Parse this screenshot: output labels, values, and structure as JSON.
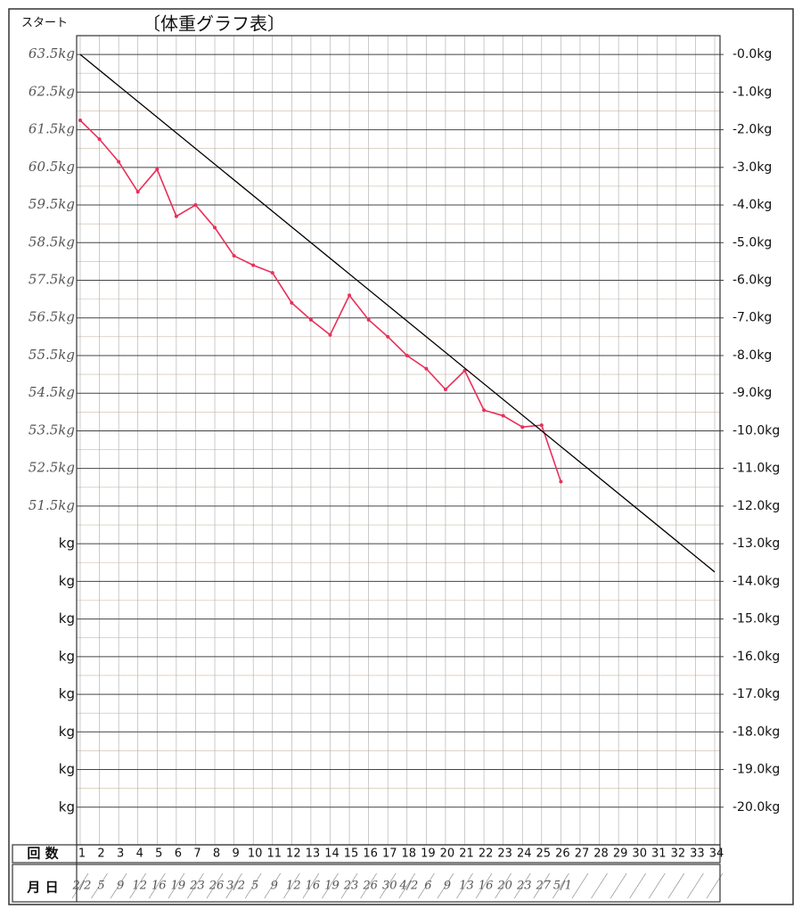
{
  "chart_data": {
    "type": "line",
    "title": "〔体重グラフ表〕",
    "start_label": "スタート",
    "x_label": "回 数",
    "date_label": "月 日",
    "x": [
      1,
      2,
      3,
      4,
      5,
      6,
      7,
      8,
      9,
      10,
      11,
      12,
      13,
      14,
      15,
      16,
      17,
      18,
      19,
      20,
      21,
      22,
      23,
      24,
      25,
      26,
      27,
      28,
      29,
      30,
      31,
      32,
      33,
      34
    ],
    "xlim": [
      1,
      34
    ],
    "xticks": [
      1,
      2,
      3,
      4,
      5,
      6,
      7,
      8,
      9,
      10,
      11,
      12,
      13,
      14,
      15,
      16,
      17,
      18,
      19,
      20,
      21,
      22,
      23,
      24,
      25,
      26,
      27,
      28,
      29,
      30,
      31,
      32,
      33,
      34
    ],
    "dates": [
      "2/2",
      "5",
      "9",
      "12",
      "16",
      "19",
      "23",
      "26",
      "3/2",
      "5",
      "9",
      "12",
      "16",
      "19",
      "23",
      "26",
      "30",
      "4/2",
      "6",
      "9",
      "13",
      "16",
      "20",
      "23",
      "27",
      "5/1",
      null,
      null,
      null,
      null,
      null,
      null,
      null,
      null
    ],
    "ylim": [
      0.5,
      -21
    ],
    "yticks": [
      {
        "value": 0,
        "label": "63.5kg"
      },
      {
        "value": -1,
        "label": "62.5kg"
      },
      {
        "value": -2,
        "label": "61.5kg"
      },
      {
        "value": -3,
        "label": "60.5kg"
      },
      {
        "value": -4,
        "label": "59.5kg"
      },
      {
        "value": -5,
        "label": "58.5kg"
      },
      {
        "value": -6,
        "label": "57.5kg"
      },
      {
        "value": -7,
        "label": "56.5kg"
      },
      {
        "value": -8,
        "label": "55.5kg"
      },
      {
        "value": -9,
        "label": "54.5kg"
      },
      {
        "value": -10,
        "label": "53.5kg"
      },
      {
        "value": -11,
        "label": "52.5kg"
      },
      {
        "value": -12,
        "label": "51.5kg"
      },
      {
        "value": -13,
        "label": "kg"
      },
      {
        "value": -14,
        "label": "kg"
      },
      {
        "value": -15,
        "label": "kg"
      },
      {
        "value": -16,
        "label": "kg"
      },
      {
        "value": -17,
        "label": "kg"
      },
      {
        "value": -18,
        "label": "kg"
      },
      {
        "value": -19,
        "label": "kg"
      },
      {
        "value": -20,
        "label": "kg"
      }
    ],
    "y2lim": [
      0.5,
      -21
    ],
    "y2ticks": [
      {
        "value": 0,
        "label": "-0.0kg"
      },
      {
        "value": -1,
        "label": "-1.0kg"
      },
      {
        "value": -2,
        "label": "-2.0kg"
      },
      {
        "value": -3,
        "label": "-3.0kg"
      },
      {
        "value": -4,
        "label": "-4.0kg"
      },
      {
        "value": -5,
        "label": "-5.0kg"
      },
      {
        "value": -6,
        "label": "-6.0kg"
      },
      {
        "value": -7,
        "label": "-7.0kg"
      },
      {
        "value": -8,
        "label": "-8.0kg"
      },
      {
        "value": -9,
        "label": "-9.0kg"
      },
      {
        "value": -10,
        "label": "-10.0kg"
      },
      {
        "value": -11,
        "label": "-11.0kg"
      },
      {
        "value": -12,
        "label": "-12.0kg"
      },
      {
        "value": -13,
        "label": "-13.0kg"
      },
      {
        "value": -14,
        "label": "-14.0kg"
      },
      {
        "value": -15,
        "label": "-15.0kg"
      },
      {
        "value": -16,
        "label": "-16.0kg"
      },
      {
        "value": -17,
        "label": "-17.0kg"
      },
      {
        "value": -18,
        "label": "-18.0kg"
      },
      {
        "value": -19,
        "label": "-19.0kg"
      },
      {
        "value": -20,
        "label": "-20.0kg"
      }
    ],
    "grid": true,
    "series": [
      {
        "color": "#e8305a",
        "values": [
          -1.75,
          -2.25,
          -2.85,
          -3.65,
          -3.05,
          -4.3,
          -4.0,
          -4.6,
          -5.35,
          -5.6,
          -5.8,
          -6.6,
          -7.05,
          -7.45,
          -6.4,
          -7.05,
          -7.5,
          -8.0,
          -8.35,
          -8.9,
          -8.4,
          -9.45,
          -9.6,
          -9.9,
          -9.85,
          -11.35,
          null,
          null,
          null,
          null,
          null,
          null,
          null,
          null
        ]
      },
      {
        "color": "#000000",
        "x": [
          1,
          34
        ],
        "values": [
          0,
          -13.75
        ]
      }
    ]
  }
}
